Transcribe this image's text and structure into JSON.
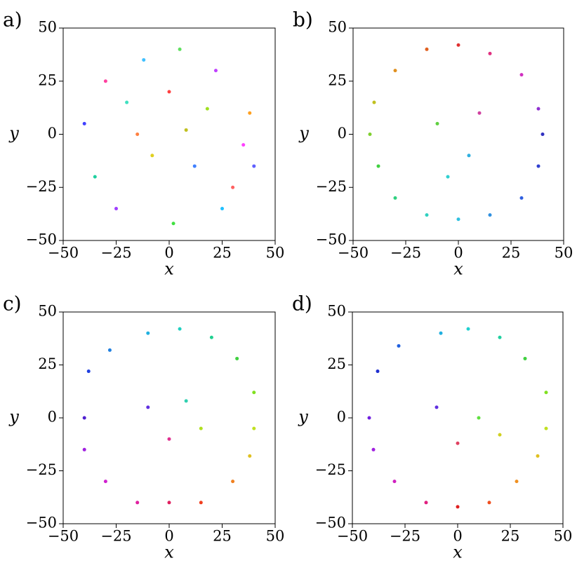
{
  "chart_data": [
    {
      "type": "scatter",
      "panel": "a)",
      "xlabel": "x",
      "ylabel": "y",
      "xlim": [
        -50,
        50
      ],
      "ylim": [
        -50,
        50
      ],
      "xticks": [
        {
          "value": -50,
          "label": "−50"
        },
        {
          "value": -25,
          "label": "−25"
        },
        0,
        25,
        50
      ],
      "yticks": [
        {
          "value": -50,
          "label": "−50"
        },
        {
          "value": -25,
          "label": "−25"
        },
        0,
        25,
        50
      ],
      "x": [
        -30,
        -12,
        5,
        22,
        38,
        -40,
        -20,
        0,
        18,
        35,
        -35,
        -8,
        12,
        30,
        -25,
        2,
        25,
        -15,
        8,
        40
      ],
      "values": [
        25,
        35,
        40,
        30,
        10,
        5,
        15,
        20,
        12,
        -5,
        -20,
        -10,
        -15,
        -25,
        -35,
        -42,
        -35,
        0,
        2,
        -15
      ],
      "colors": [
        "#ff40a0",
        "#40c0ff",
        "#60e060",
        "#c040ff",
        "#ffa020",
        "#4040ff",
        "#40e0c0",
        "#ff4040",
        "#a0e020",
        "#ff40ff",
        "#20d0a0",
        "#e0d020",
        "#4080ff",
        "#ff6060",
        "#a040ff",
        "#40e040",
        "#20c0ff",
        "#ff8040",
        "#c0c020",
        "#6060ff"
      ]
    },
    {
      "type": "scatter",
      "panel": "b)",
      "xlabel": "x",
      "ylabel": "y",
      "xlim": [
        -50,
        50
      ],
      "ylim": [
        -50,
        50
      ],
      "xticks": [
        {
          "value": -50,
          "label": "−50"
        },
        {
          "value": -25,
          "label": "−25"
        },
        0,
        25,
        50
      ],
      "yticks": [
        {
          "value": -50,
          "label": "−50"
        },
        {
          "value": -25,
          "label": "−25"
        },
        0,
        25,
        50
      ],
      "x": [
        40,
        38,
        30,
        15,
        0,
        -15,
        -30,
        -40,
        -42,
        -38,
        -30,
        -15,
        0,
        15,
        30,
        38,
        10,
        -10,
        5,
        -5
      ],
      "values": [
        0,
        12,
        28,
        38,
        42,
        40,
        30,
        15,
        0,
        -15,
        -30,
        -38,
        -40,
        -38,
        -30,
        -15,
        10,
        5,
        -10,
        -20
      ],
      "colors": [
        "#3030c0",
        "#9030d0",
        "#d030c0",
        "#e03080",
        "#e03030",
        "#e06020",
        "#e09020",
        "#c0c020",
        "#80d030",
        "#40d040",
        "#30d080",
        "#30d0c0",
        "#30c0e0",
        "#3090e0",
        "#3060e0",
        "#3040d0",
        "#d040a0",
        "#60d040",
        "#30b0e0",
        "#30d0d0"
      ]
    },
    {
      "type": "scatter",
      "panel": "c)",
      "xlabel": "x",
      "ylabel": "y",
      "xlim": [
        -50,
        50
      ],
      "ylim": [
        -50,
        50
      ],
      "xticks": [
        {
          "value": -50,
          "label": "−50"
        },
        {
          "value": -25,
          "label": "−25"
        },
        0,
        25,
        50
      ],
      "yticks": [
        {
          "value": -50,
          "label": "−50"
        },
        {
          "value": -25,
          "label": "−25"
        },
        0,
        25,
        50
      ],
      "x": [
        -40,
        -38,
        -28,
        -10,
        5,
        20,
        32,
        40,
        40,
        38,
        30,
        15,
        0,
        -15,
        -30,
        -40,
        -10,
        8,
        0,
        15
      ],
      "values": [
        0,
        22,
        32,
        40,
        42,
        38,
        28,
        12,
        -5,
        -18,
        -30,
        -40,
        -40,
        -40,
        -30,
        -15,
        5,
        8,
        -10,
        -5
      ],
      "colors": [
        "#5020d0",
        "#2040e0",
        "#2080e0",
        "#20b0e0",
        "#20d0c0",
        "#20d090",
        "#40d040",
        "#80e020",
        "#c0e020",
        "#e0c020",
        "#f08020",
        "#f04020",
        "#e02060",
        "#e020a0",
        "#d020d0",
        "#a020e0",
        "#6030e0",
        "#30d0b0",
        "#e03090",
        "#b0e020"
      ]
    },
    {
      "type": "scatter",
      "panel": "d)",
      "xlabel": "x",
      "ylabel": "y",
      "xlim": [
        -50,
        50
      ],
      "ylim": [
        -50,
        50
      ],
      "xticks": [
        {
          "value": -50,
          "label": "−50"
        },
        {
          "value": -25,
          "label": "−25"
        },
        0,
        25,
        50
      ],
      "yticks": [
        {
          "value": -50,
          "label": "−50"
        },
        {
          "value": -25,
          "label": "−25"
        },
        0,
        25,
        50
      ],
      "x": [
        -42,
        -38,
        -28,
        -8,
        5,
        20,
        32,
        42,
        42,
        38,
        28,
        15,
        0,
        -15,
        -30,
        -40,
        -10,
        10,
        0,
        20
      ],
      "values": [
        0,
        22,
        34,
        40,
        42,
        38,
        28,
        12,
        -5,
        -18,
        -30,
        -40,
        -42,
        -40,
        -30,
        -15,
        5,
        0,
        -12,
        -8
      ],
      "colors": [
        "#7020e0",
        "#2030d0",
        "#2060e0",
        "#20b0e0",
        "#20d0d0",
        "#20d0a0",
        "#40d040",
        "#80e020",
        "#c0e020",
        "#e0c020",
        "#f09020",
        "#f05020",
        "#e02020",
        "#e02080",
        "#d020c0",
        "#a020e0",
        "#6030e0",
        "#60e040",
        "#e04060",
        "#d0d020"
      ]
    }
  ]
}
